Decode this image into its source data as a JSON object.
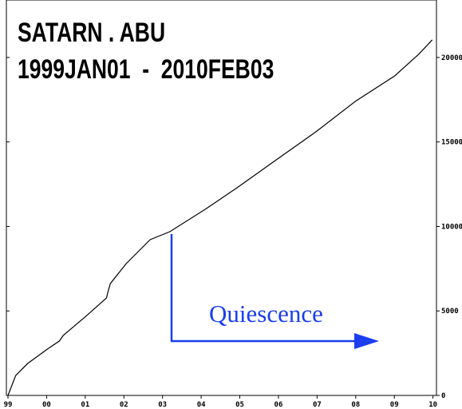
{
  "chart_data": {
    "type": "line",
    "title": "SATARN . ABU",
    "subtitle": "1999JAN01  -  2010FEB03",
    "annotation": "Quiescence",
    "x": [
      1999.0,
      1999.2,
      1999.51,
      2000.02,
      2000.33,
      2000.43,
      2001.04,
      2001.55,
      2001.59,
      2001.65,
      2002.06,
      2002.68,
      2003.19,
      2004.11,
      2004.93,
      2005.95,
      2006.97,
      2007.99,
      2009.01,
      2009.63,
      2009.98
    ],
    "series": [
      {
        "name": "SATARN . ABU",
        "color": "#000000",
        "values": [
          0,
          1180,
          1890,
          2740,
          3220,
          3550,
          4730,
          5770,
          6150,
          6620,
          7800,
          9220,
          9690,
          11020,
          12290,
          13950,
          15600,
          17400,
          18910,
          20190,
          21040
        ]
      }
    ],
    "xlim": [
      1999,
      2010.09
    ],
    "xticks": [
      {
        "value": 1999,
        "label": "99"
      },
      {
        "value": 2000,
        "label": "00"
      },
      {
        "value": 2001,
        "label": "01"
      },
      {
        "value": 2002,
        "label": "02"
      },
      {
        "value": 2003,
        "label": "03"
      },
      {
        "value": 2004,
        "label": "04"
      },
      {
        "value": 2005,
        "label": "05"
      },
      {
        "value": 2006,
        "label": "06"
      },
      {
        "value": 2007,
        "label": "07"
      },
      {
        "value": 2008,
        "label": "08"
      },
      {
        "value": 2009,
        "label": "09"
      },
      {
        "value": 2010,
        "label": "10"
      }
    ],
    "ylim": [
      0,
      23400
    ],
    "yticks": [
      0,
      5000,
      10000,
      15000,
      20000
    ],
    "annotation_color": "#1a3ef0"
  }
}
